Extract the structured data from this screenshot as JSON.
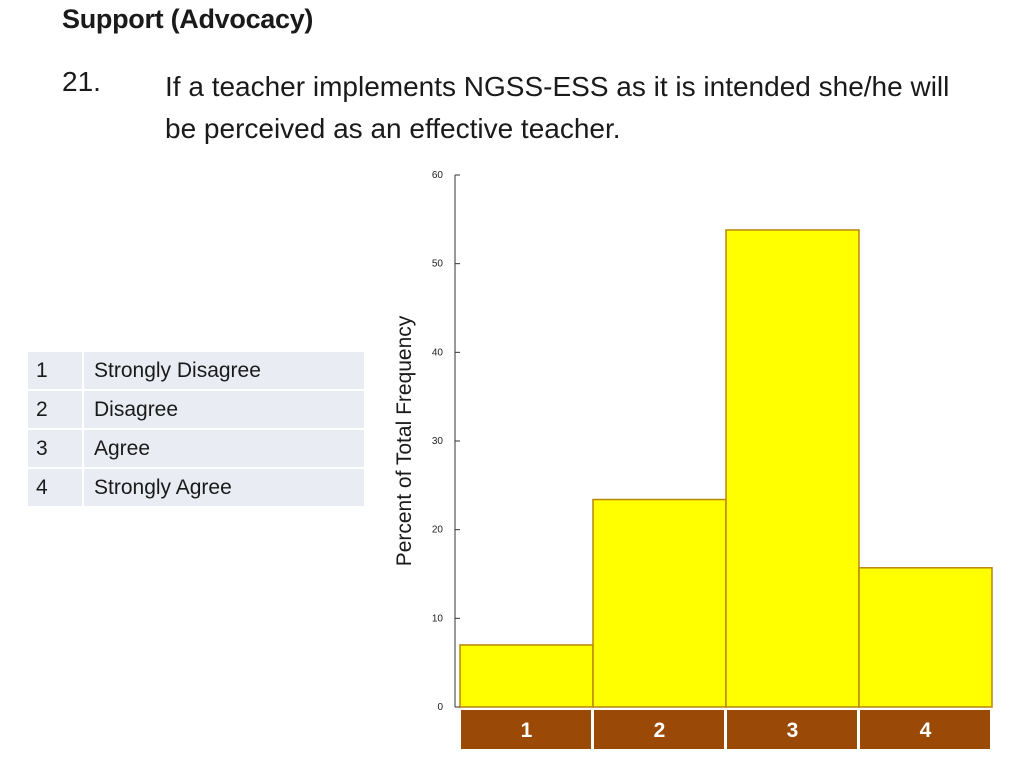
{
  "slide": {
    "title": "Support (Advocacy)",
    "question_number": "21.",
    "question_text": "If a teacher implements NGSS-ESS as it is intended she/he will be perceived as an effective teacher."
  },
  "legend_table": [
    {
      "code": "1",
      "label": "Strongly Disagree"
    },
    {
      "code": "2",
      "label": "Disagree"
    },
    {
      "code": "3",
      "label": "Agree"
    },
    {
      "code": "4",
      "label": "Strongly Agree"
    }
  ],
  "chart_data": {
    "type": "bar",
    "categories": [
      "1",
      "2",
      "3",
      "4"
    ],
    "values": [
      7,
      23.4,
      53.8,
      15.7
    ],
    "title": "",
    "xlabel": "",
    "ylabel": "Percent of Total Frequency",
    "ylim": [
      0,
      60
    ],
    "yticks": [
      0,
      10,
      20,
      30,
      40,
      50,
      60
    ],
    "grid": false,
    "bar_color": "#ffff00",
    "bar_edge_color": "#b8860b",
    "category_box_color": "#9a4a06",
    "category_text_color": "#ffffff"
  }
}
